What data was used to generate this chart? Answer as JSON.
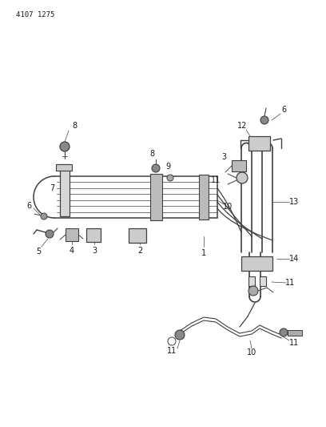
{
  "title_text": "4107 1275",
  "bg_color": "#ffffff",
  "line_color": "#404040",
  "label_color": "#1a1a1a",
  "label_fontsize": 7.0,
  "fig_width": 4.08,
  "fig_height": 5.33,
  "dpi": 100
}
